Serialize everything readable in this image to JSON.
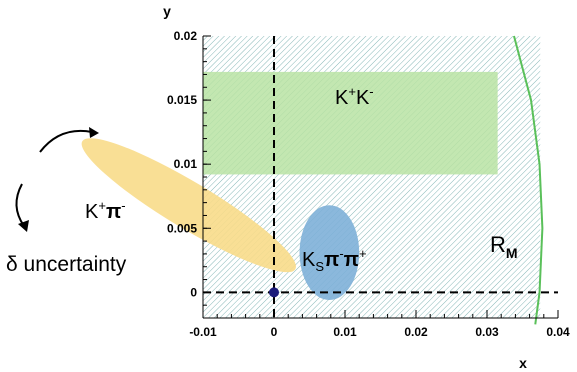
{
  "chart_data": {
    "type": "scatter",
    "title": "",
    "xlabel": "x",
    "ylabel": "y",
    "xlim": [
      -0.01,
      0.04
    ],
    "ylim": [
      -0.002,
      0.02
    ],
    "x_ticks": [
      -0.01,
      0,
      0.01,
      0.02,
      0.03,
      0.04
    ],
    "x_tick_labels": [
      "-0.01",
      "0",
      "0.01",
      "0.02",
      "0.03",
      "0.04"
    ],
    "y_ticks": [
      0,
      0.005,
      0.01,
      0.015,
      0.02
    ],
    "y_tick_labels": [
      "0",
      "0.005",
      "0.01",
      "0.015",
      "0.02"
    ],
    "hatched_region": {
      "xlim": [
        -0.01,
        0.0375
      ],
      "ylim": [
        -0.002,
        0.02
      ]
    },
    "kk_band": {
      "label_main": "K",
      "label_sup1": "+",
      "label_mid": "K",
      "label_sup2": "-",
      "y_range": [
        0.0092,
        0.0172
      ],
      "x_range": [
        -0.01,
        0.0315
      ],
      "color": "#b8e3a3"
    },
    "kspipi_ellipse": {
      "label_main": "K",
      "label_sub": "S",
      "label_pi1": "π",
      "label_sup1": "-",
      "label_pi2": "π",
      "label_sup2": "+",
      "center": [
        0.0078,
        0.0031
      ],
      "radius_x": 0.0042,
      "radius_y": 0.0037,
      "color": "#7eb0d8"
    },
    "kpi_ellipse": {
      "label_main": "K",
      "label_sup1": "+",
      "label_pi": "π",
      "label_sup2": "-",
      "center": [
        -0.012,
        0.0068
      ],
      "radius_x": 0.0175,
      "radius_y": 0.0018,
      "angle_deg": -31,
      "color": "#f8dc8a"
    },
    "rm_curve": {
      "label_main": "R",
      "label_sub": "M",
      "points": [
        [
          0.0338,
          0.02
        ],
        [
          0.0362,
          0.015
        ],
        [
          0.0374,
          0.01
        ],
        [
          0.0378,
          0.005
        ],
        [
          0.0374,
          0.0
        ],
        [
          0.0368,
          -0.0025
        ]
      ],
      "color": "#5ac05a"
    },
    "central_point": {
      "x": 0,
      "y": 0,
      "color": "#1a1a7a"
    },
    "uncertainty_label": {
      "symbol": "δ",
      "text": "uncertainty"
    },
    "dashed_lines": [
      {
        "type": "vertical",
        "x": 0
      },
      {
        "type": "horizontal",
        "y": 0
      }
    ]
  }
}
